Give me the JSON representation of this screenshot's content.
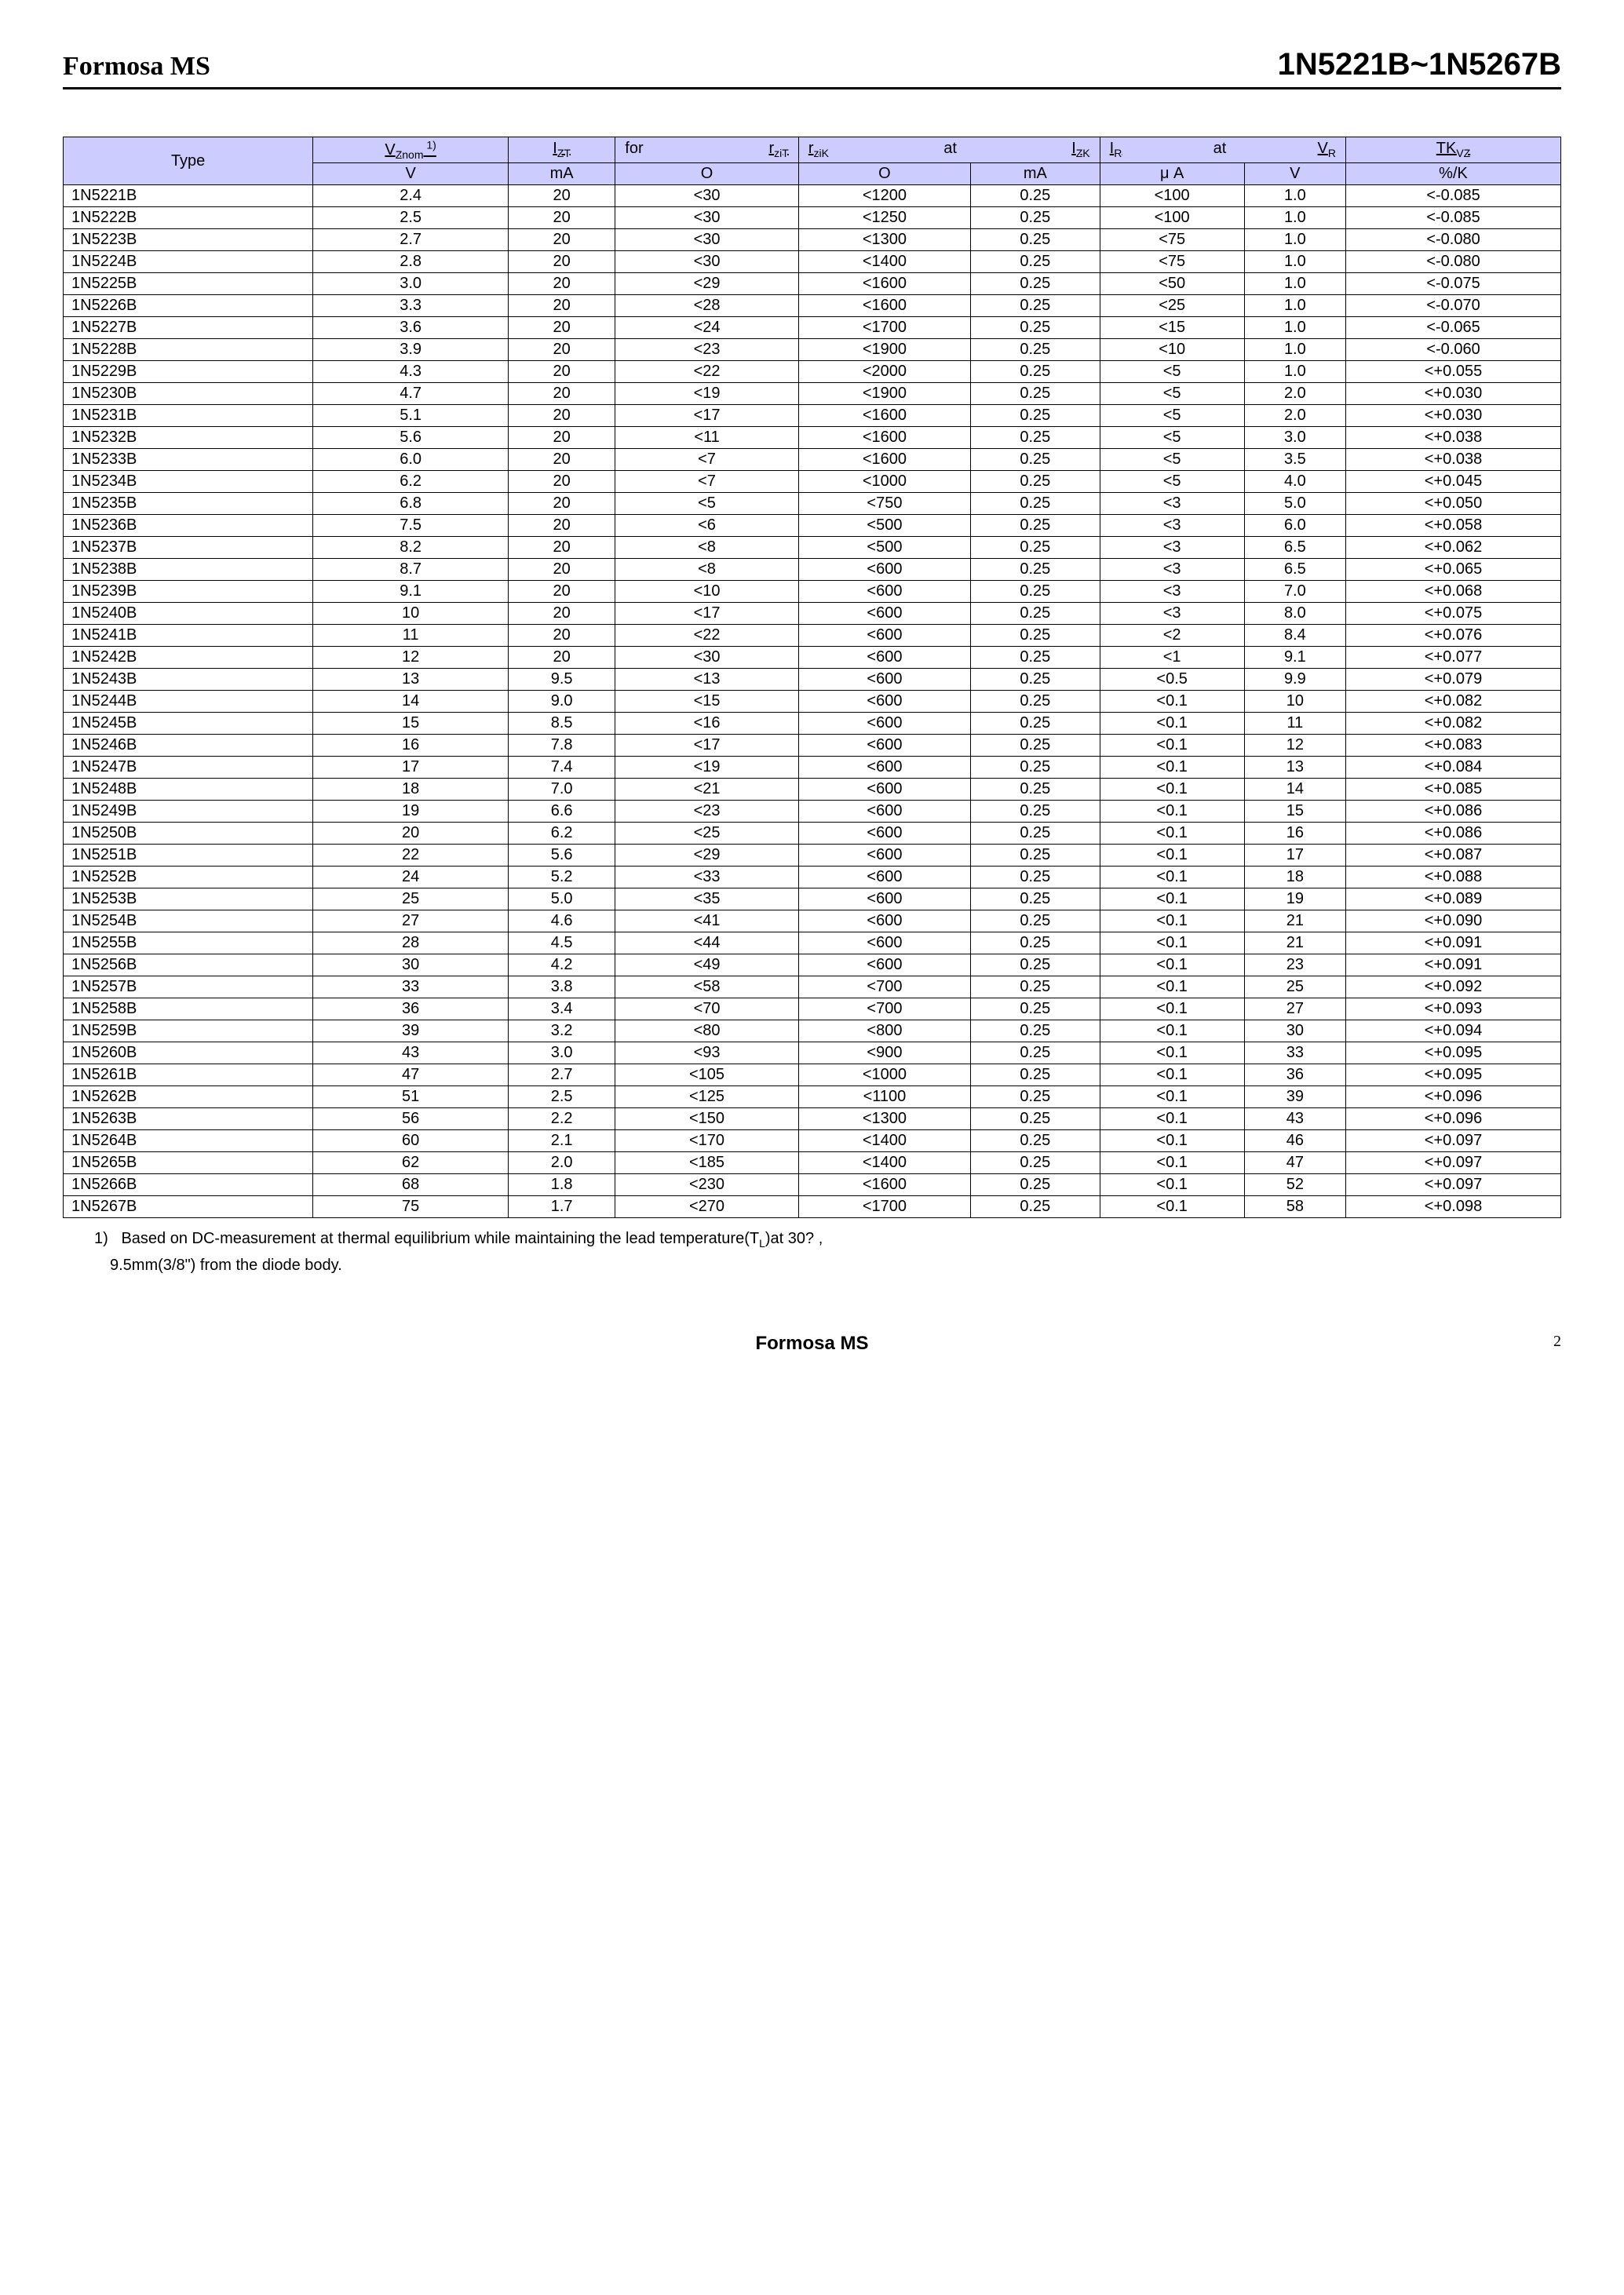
{
  "header": {
    "brand": "Formosa  MS",
    "part_range": "1N5221B~1N5267B"
  },
  "table": {
    "header_bg": "#ccccff",
    "border_color": "#000000",
    "columns": [
      {
        "row1": "Type",
        "row2": ""
      },
      {
        "row1": "V_Znom_1)",
        "row2": "V"
      },
      {
        "row1": "I_ZT",
        "row2": "mA"
      },
      {
        "row1_left": "for",
        "row1_right": "r_ziT",
        "row2": "Ο"
      },
      {
        "row1_left": "r_ziK",
        "row1_mid": "at",
        "row1_right": "I_ZK",
        "row2": "Ο"
      },
      {
        "row1": "",
        "row2": "mA"
      },
      {
        "row1_left": "I_R",
        "row1_mid": "at",
        "row1_right": "V_R",
        "row2": "μ A"
      },
      {
        "row1": "",
        "row2": "V"
      },
      {
        "row1": "TK_VZ",
        "row2": "%/K"
      }
    ],
    "rows": [
      [
        "1N5221B",
        "2.4",
        "20",
        "<30",
        "<1200",
        "0.25",
        "<100",
        "1.0",
        "<-0.085"
      ],
      [
        "1N5222B",
        "2.5",
        "20",
        "<30",
        "<1250",
        "0.25",
        "<100",
        "1.0",
        "<-0.085"
      ],
      [
        "1N5223B",
        "2.7",
        "20",
        "<30",
        "<1300",
        "0.25",
        "<75",
        "1.0",
        "<-0.080"
      ],
      [
        "1N5224B",
        "2.8",
        "20",
        "<30",
        "<1400",
        "0.25",
        "<75",
        "1.0",
        "<-0.080"
      ],
      [
        "1N5225B",
        "3.0",
        "20",
        "<29",
        "<1600",
        "0.25",
        "<50",
        "1.0",
        "<-0.075"
      ],
      [
        "1N5226B",
        "3.3",
        "20",
        "<28",
        "<1600",
        "0.25",
        "<25",
        "1.0",
        "<-0.070"
      ],
      [
        "1N5227B",
        "3.6",
        "20",
        "<24",
        "<1700",
        "0.25",
        "<15",
        "1.0",
        "<-0.065"
      ],
      [
        "1N5228B",
        "3.9",
        "20",
        "<23",
        "<1900",
        "0.25",
        "<10",
        "1.0",
        "<-0.060"
      ],
      [
        "1N5229B",
        "4.3",
        "20",
        "<22",
        "<2000",
        "0.25",
        "<5",
        "1.0",
        "<+0.055"
      ],
      [
        "1N5230B",
        "4.7",
        "20",
        "<19",
        "<1900",
        "0.25",
        "<5",
        "2.0",
        "<+0.030"
      ],
      [
        "1N5231B",
        "5.1",
        "20",
        "<17",
        "<1600",
        "0.25",
        "<5",
        "2.0",
        "<+0.030"
      ],
      [
        "1N5232B",
        "5.6",
        "20",
        "<11",
        "<1600",
        "0.25",
        "<5",
        "3.0",
        "<+0.038"
      ],
      [
        "1N5233B",
        "6.0",
        "20",
        "<7",
        "<1600",
        "0.25",
        "<5",
        "3.5",
        "<+0.038"
      ],
      [
        "1N5234B",
        "6.2",
        "20",
        "<7",
        "<1000",
        "0.25",
        "<5",
        "4.0",
        "<+0.045"
      ],
      [
        "1N5235B",
        "6.8",
        "20",
        "<5",
        "<750",
        "0.25",
        "<3",
        "5.0",
        "<+0.050"
      ],
      [
        "1N5236B",
        "7.5",
        "20",
        "<6",
        "<500",
        "0.25",
        "<3",
        "6.0",
        "<+0.058"
      ],
      [
        "1N5237B",
        "8.2",
        "20",
        "<8",
        "<500",
        "0.25",
        "<3",
        "6.5",
        "<+0.062"
      ],
      [
        "1N5238B",
        "8.7",
        "20",
        "<8",
        "<600",
        "0.25",
        "<3",
        "6.5",
        "<+0.065"
      ],
      [
        "1N5239B",
        "9.1",
        "20",
        "<10",
        "<600",
        "0.25",
        "<3",
        "7.0",
        "<+0.068"
      ],
      [
        "1N5240B",
        "10",
        "20",
        "<17",
        "<600",
        "0.25",
        "<3",
        "8.0",
        "<+0.075"
      ],
      [
        "1N5241B",
        "11",
        "20",
        "<22",
        "<600",
        "0.25",
        "<2",
        "8.4",
        "<+0.076"
      ],
      [
        "1N5242B",
        "12",
        "20",
        "<30",
        "<600",
        "0.25",
        "<1",
        "9.1",
        "<+0.077"
      ],
      [
        "1N5243B",
        "13",
        "9.5",
        "<13",
        "<600",
        "0.25",
        "<0.5",
        "9.9",
        "<+0.079"
      ],
      [
        "1N5244B",
        "14",
        "9.0",
        "<15",
        "<600",
        "0.25",
        "<0.1",
        "10",
        "<+0.082"
      ],
      [
        "1N5245B",
        "15",
        "8.5",
        "<16",
        "<600",
        "0.25",
        "<0.1",
        "11",
        "<+0.082"
      ],
      [
        "1N5246B",
        "16",
        "7.8",
        "<17",
        "<600",
        "0.25",
        "<0.1",
        "12",
        "<+0.083"
      ],
      [
        "1N5247B",
        "17",
        "7.4",
        "<19",
        "<600",
        "0.25",
        "<0.1",
        "13",
        "<+0.084"
      ],
      [
        "1N5248B",
        "18",
        "7.0",
        "<21",
        "<600",
        "0.25",
        "<0.1",
        "14",
        "<+0.085"
      ],
      [
        "1N5249B",
        "19",
        "6.6",
        "<23",
        "<600",
        "0.25",
        "<0.1",
        "15",
        "<+0.086"
      ],
      [
        "1N5250B",
        "20",
        "6.2",
        "<25",
        "<600",
        "0.25",
        "<0.1",
        "16",
        "<+0.086"
      ],
      [
        "1N5251B",
        "22",
        "5.6",
        "<29",
        "<600",
        "0.25",
        "<0.1",
        "17",
        "<+0.087"
      ],
      [
        "1N5252B",
        "24",
        "5.2",
        "<33",
        "<600",
        "0.25",
        "<0.1",
        "18",
        "<+0.088"
      ],
      [
        "1N5253B",
        "25",
        "5.0",
        "<35",
        "<600",
        "0.25",
        "<0.1",
        "19",
        "<+0.089"
      ],
      [
        "1N5254B",
        "27",
        "4.6",
        "<41",
        "<600",
        "0.25",
        "<0.1",
        "21",
        "<+0.090"
      ],
      [
        "1N5255B",
        "28",
        "4.5",
        "<44",
        "<600",
        "0.25",
        "<0.1",
        "21",
        "<+0.091"
      ],
      [
        "1N5256B",
        "30",
        "4.2",
        "<49",
        "<600",
        "0.25",
        "<0.1",
        "23",
        "<+0.091"
      ],
      [
        "1N5257B",
        "33",
        "3.8",
        "<58",
        "<700",
        "0.25",
        "<0.1",
        "25",
        "<+0.092"
      ],
      [
        "1N5258B",
        "36",
        "3.4",
        "<70",
        "<700",
        "0.25",
        "<0.1",
        "27",
        "<+0.093"
      ],
      [
        "1N5259B",
        "39",
        "3.2",
        "<80",
        "<800",
        "0.25",
        "<0.1",
        "30",
        "<+0.094"
      ],
      [
        "1N5260B",
        "43",
        "3.0",
        "<93",
        "<900",
        "0.25",
        "<0.1",
        "33",
        "<+0.095"
      ],
      [
        "1N5261B",
        "47",
        "2.7",
        "<105",
        "<1000",
        "0.25",
        "<0.1",
        "36",
        "<+0.095"
      ],
      [
        "1N5262B",
        "51",
        "2.5",
        "<125",
        "<1100",
        "0.25",
        "<0.1",
        "39",
        "<+0.096"
      ],
      [
        "1N5263B",
        "56",
        "2.2",
        "<150",
        "<1300",
        "0.25",
        "<0.1",
        "43",
        "<+0.096"
      ],
      [
        "1N5264B",
        "60",
        "2.1",
        "<170",
        "<1400",
        "0.25",
        "<0.1",
        "46",
        "<+0.097"
      ],
      [
        "1N5265B",
        "62",
        "2.0",
        "<185",
        "<1400",
        "0.25",
        "<0.1",
        "47",
        "<+0.097"
      ],
      [
        "1N5266B",
        "68",
        "1.8",
        "<230",
        "<1600",
        "0.25",
        "<0.1",
        "52",
        "<+0.097"
      ],
      [
        "1N5267B",
        "75",
        "1.7",
        "<270",
        "<1700",
        "0.25",
        "<0.1",
        "58",
        "<+0.098"
      ]
    ]
  },
  "footnote": {
    "num": "1)",
    "text1": "Based on DC-measurement at thermal equilibrium while maintaining the lead temperature(T",
    "text_sub": "L",
    "text2": ")at 30? ,",
    "text3": "9.5mm(3/8\") from the diode body."
  },
  "footer": {
    "brand": "Formosa MS",
    "page": "2"
  }
}
